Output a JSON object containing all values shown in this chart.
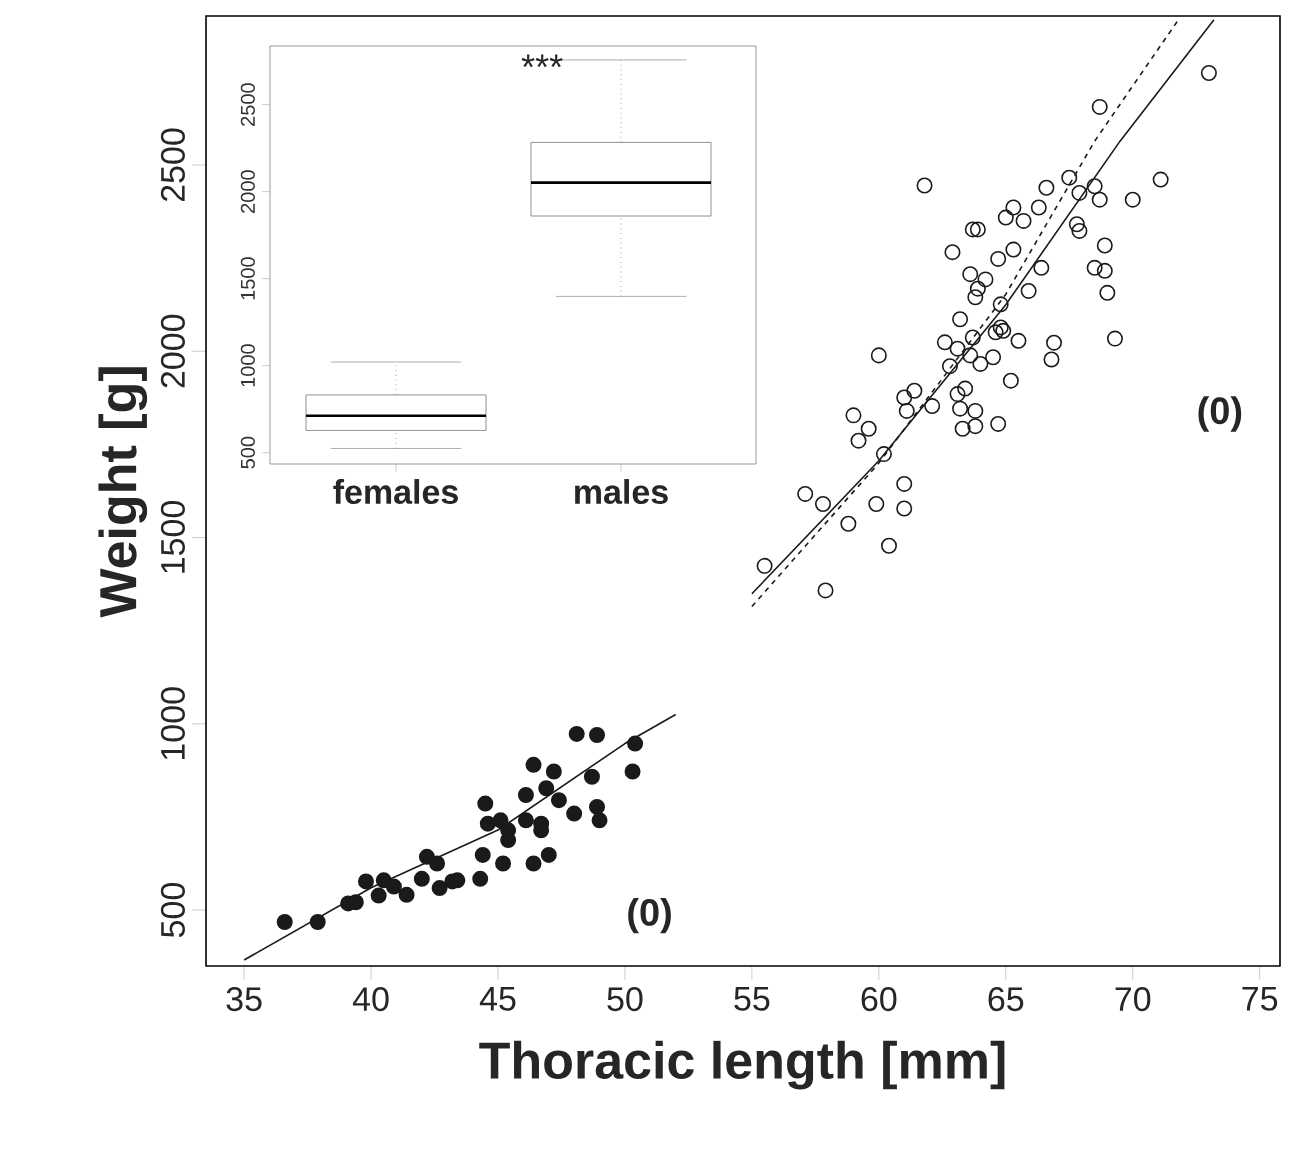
{
  "chart_data": [
    {
      "type": "scatter",
      "xlabel": "Thoracic length [mm]",
      "ylabel": "Weight [g]",
      "xlim": [
        33.5,
        75.8
      ],
      "ylim": [
        350,
        2900
      ],
      "xticks": [
        35,
        40,
        45,
        50,
        55,
        60,
        65,
        70,
        75
      ],
      "yticks": [
        500,
        1000,
        1500,
        2000,
        2500
      ],
      "series": [
        {
          "type": "scatter",
          "marker": "circle",
          "color": "#1a1a1a",
          "x": [
            36.6,
            37.9,
            39.1,
            39.4,
            39.8,
            40.3,
            40.5,
            40.9,
            41.4,
            42.0,
            42.2,
            42.6,
            42.7,
            43.2,
            43.4,
            44.3,
            44.4,
            44.5,
            44.6,
            45.1,
            45.2,
            45.4,
            45.4,
            46.1,
            46.1,
            46.4,
            46.4,
            46.7,
            46.7,
            46.9,
            47.0,
            47.2,
            47.4,
            48.0,
            48.1,
            48.7,
            48.9,
            48.9,
            49.0,
            50.3,
            50.4
          ],
          "values": [
            468,
            468,
            518,
            521,
            577,
            539,
            580,
            563,
            541,
            584,
            643,
            625,
            559,
            577,
            580,
            584,
            648,
            786,
            732,
            741,
            625,
            688,
            714,
            809,
            741,
            890,
            625,
            732,
            714,
            827,
            648,
            872,
            795,
            759,
            973,
            858,
            970,
            777,
            741,
            872,
            947
          ]
        },
        {
          "type": "scatter",
          "marker": "open circle",
          "color": "#1a1a1a",
          "x": [
            61.8,
            67.5,
            67.9,
            68.5,
            68.7,
            70.0,
            71.1,
            66.6,
            66.3,
            65.3,
            65.0,
            65.7,
            63.7,
            63.9,
            62.9,
            65.3,
            64.7,
            63.6,
            64.2,
            63.9,
            63.8,
            66.4,
            65.9,
            67.8,
            67.9,
            68.9,
            68.5,
            68.9,
            69.0,
            64.8,
            63.2,
            63.7,
            64.8,
            64.6,
            64.9,
            65.5,
            66.9,
            66.8,
            69.3,
            62.6,
            63.1,
            62.8,
            63.6,
            64.0,
            64.5,
            60.0,
            65.2,
            61.4,
            61.0,
            61.1,
            62.1,
            63.1,
            63.4,
            63.2,
            63.8,
            63.8,
            63.3,
            64.7,
            59.0,
            59.6,
            59.2,
            60.2,
            57.1,
            57.8,
            59.9,
            61.0,
            61.0,
            58.8,
            60.4,
            55.5,
            57.9,
            73.0,
            68.7
          ],
          "values": [
            2445,
            2466,
            2425,
            2443,
            2407,
            2407,
            2461,
            2439,
            2386,
            2386,
            2359,
            2350,
            2327,
            2327,
            2266,
            2273,
            2248,
            2207,
            2193,
            2168,
            2145,
            2224,
            2162,
            2341,
            2323,
            2284,
            2224,
            2216,
            2157,
            2126,
            2086,
            2037,
            2064,
            2051,
            2055,
            2028,
            2023,
            1978,
            2034,
            2024,
            2007,
            1960,
            1989,
            1966,
            1984,
            1989,
            1921,
            1894,
            1876,
            1840,
            1853,
            1885,
            1900,
            1846,
            1840,
            1799,
            1792,
            1805,
            1828,
            1792,
            1760,
            1724,
            1617,
            1590,
            1590,
            1644,
            1578,
            1537,
            1478,
            1424,
            1358,
            2747,
            2656
          ]
        },
        {
          "type": "line",
          "line_style": "solid",
          "color": "#1a1a1a",
          "x": [
            35,
            40,
            45,
            50,
            52
          ],
          "values": [
            366,
            560,
            715,
            947,
            1025
          ]
        },
        {
          "type": "line",
          "line_style": "solid",
          "color": "#1a1a1a",
          "x": [
            55,
            60,
            65,
            69.5,
            73.2
          ],
          "values": [
            1349,
            1706,
            2125,
            2564,
            2890
          ]
        },
        {
          "type": "line",
          "line_style": "dashed",
          "color": "#1a1a1a",
          "x": [
            55,
            60,
            65,
            68.5,
            71.8
          ],
          "values": [
            1315,
            1700,
            2153,
            2564,
            2890
          ]
        }
      ],
      "annotations": [
        "(0)",
        "(0)"
      ]
    },
    {
      "type": "box",
      "categories": [
        "females",
        "males"
      ],
      "ylim": [
        435,
        2837
      ],
      "yticks": [
        500,
        1000,
        1500,
        2000,
        2500
      ],
      "boxes": [
        {
          "low": 524,
          "q1": 628,
          "median": 712,
          "q3": 832,
          "high": 1021
        },
        {
          "low": 1398,
          "q1": 1860,
          "median": 2052,
          "q3": 2283,
          "high": 2757
        }
      ],
      "annotations": [
        "***"
      ]
    }
  ]
}
